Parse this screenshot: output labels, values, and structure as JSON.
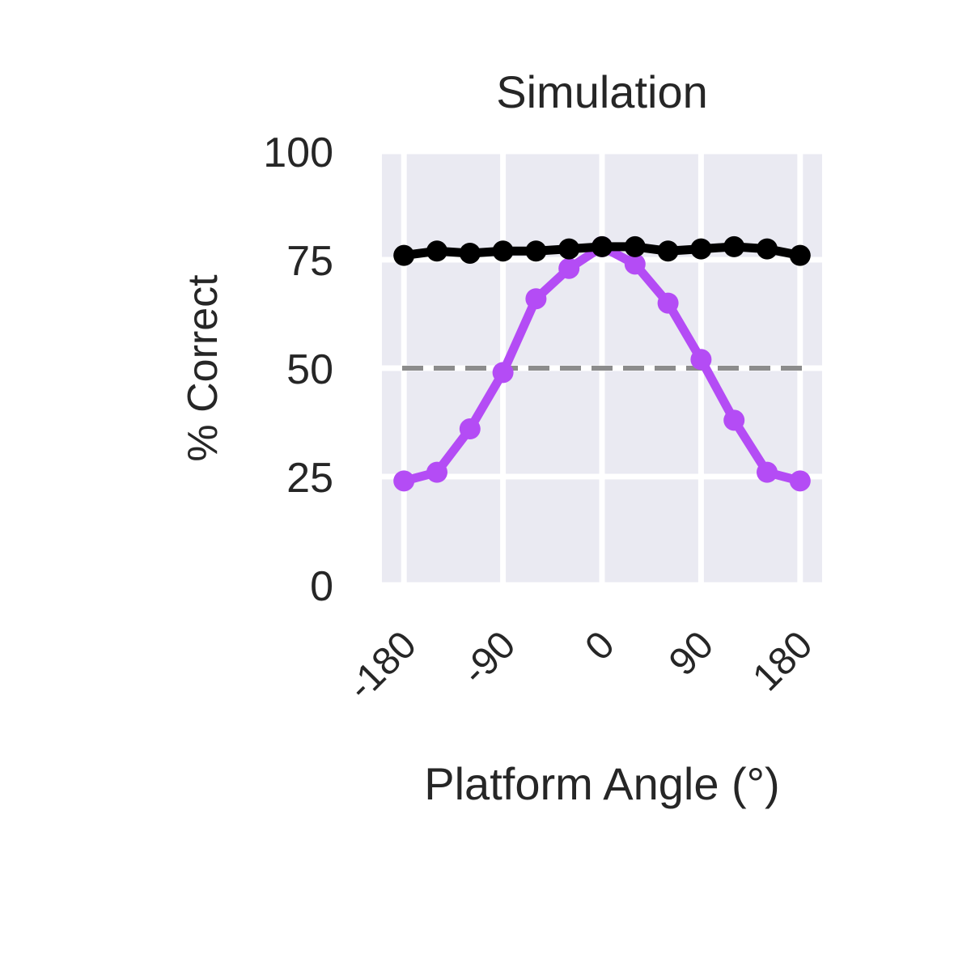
{
  "chart_data": {
    "type": "line",
    "title": "Simulation",
    "xlabel": "Platform Angle (°)",
    "ylabel": "% Correct",
    "xlim": [
      -200,
      200
    ],
    "ylim": [
      0,
      100
    ],
    "x_ticks": [
      -180,
      -90,
      0,
      90,
      180
    ],
    "x_tick_labels": [
      "-180",
      "-90",
      "0",
      "90",
      "180"
    ],
    "y_ticks": [
      0,
      25,
      50,
      75,
      100
    ],
    "y_tick_labels": [
      "0",
      "25",
      "50",
      "75",
      "100"
    ],
    "grid": true,
    "reference_line": {
      "y": 50,
      "style": "dashed",
      "color": "#8c8c8c"
    },
    "x": [
      -180,
      -150,
      -120,
      -90,
      -60,
      -30,
      0,
      30,
      60,
      90,
      120,
      150,
      180
    ],
    "series": [
      {
        "color": "#b44cf5",
        "values": [
          24,
          26,
          36,
          49,
          66,
          73,
          78,
          74,
          65,
          52,
          38,
          26,
          24
        ]
      },
      {
        "color": "#000000",
        "values": [
          76,
          77,
          76.5,
          77,
          77,
          77.5,
          78,
          78,
          77,
          77.5,
          78,
          77.5,
          76
        ]
      }
    ]
  }
}
